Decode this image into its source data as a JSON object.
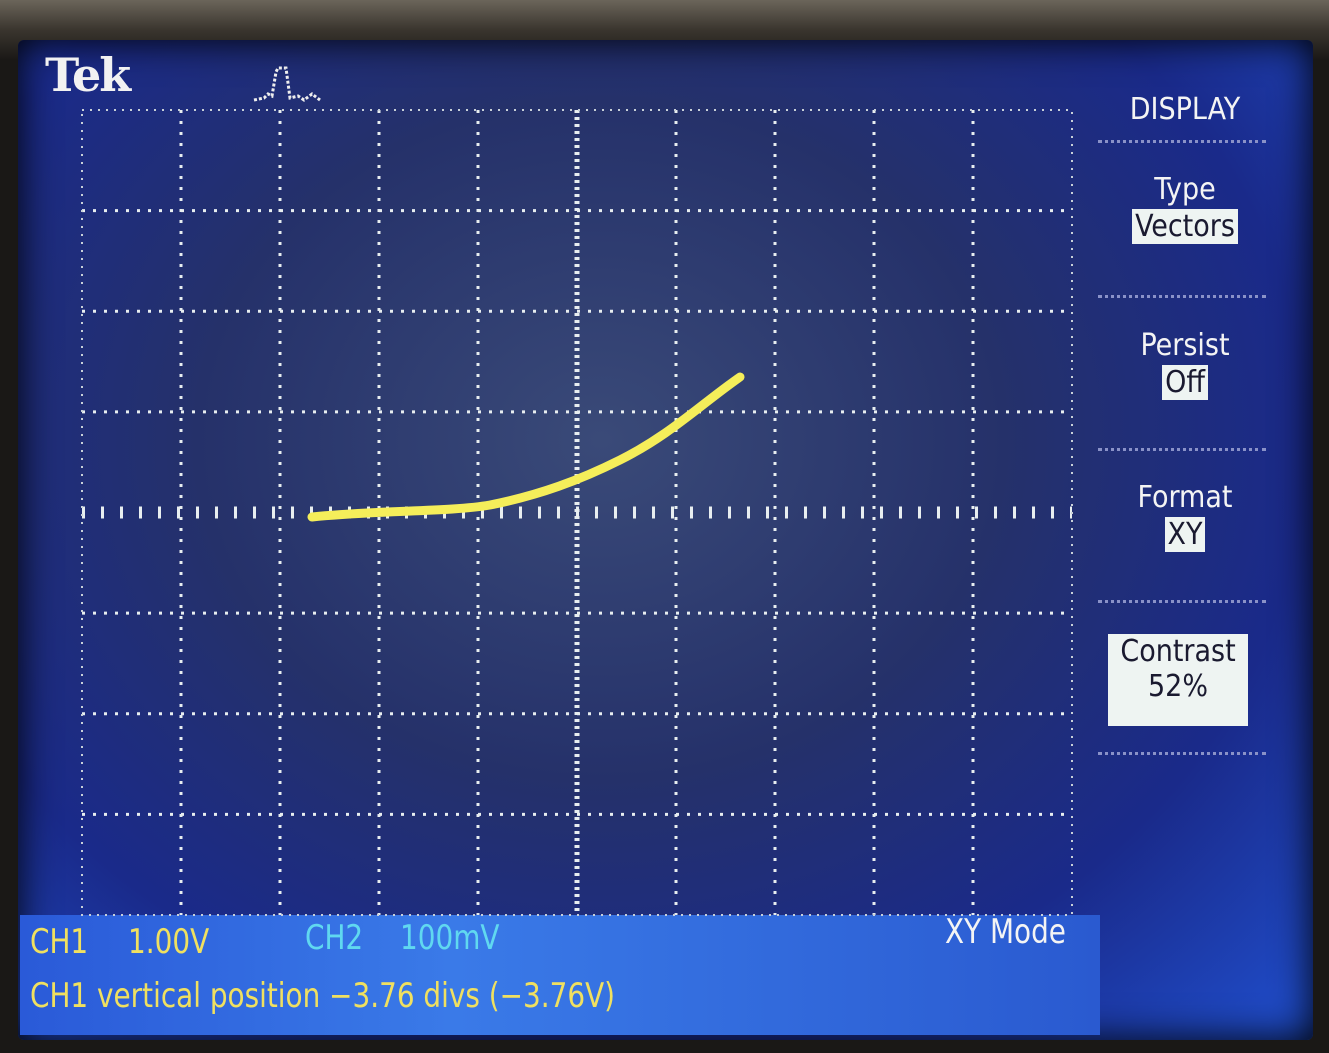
{
  "brand": "Tek",
  "trigger_icon": "trigger-pulse-icon",
  "menu": {
    "title": "DISPLAY",
    "items": [
      {
        "label": "Type",
        "value": "Vectors"
      },
      {
        "label": "Persist",
        "value": "Off"
      },
      {
        "label": "Format",
        "value": "XY"
      },
      {
        "label": "Contrast",
        "value": "52%"
      }
    ]
  },
  "status": {
    "ch1_label": "CH1",
    "ch1_scale": "1.00V",
    "ch2_label": "CH2",
    "ch2_scale": "100mV",
    "mode": "XY Mode",
    "message": "CH1 vertical position −3.76 divs (−3.76V)"
  },
  "colors": {
    "ch1": "#f0e060",
    "ch2": "#60d8f0",
    "trace": "#f5ee5a"
  }
}
